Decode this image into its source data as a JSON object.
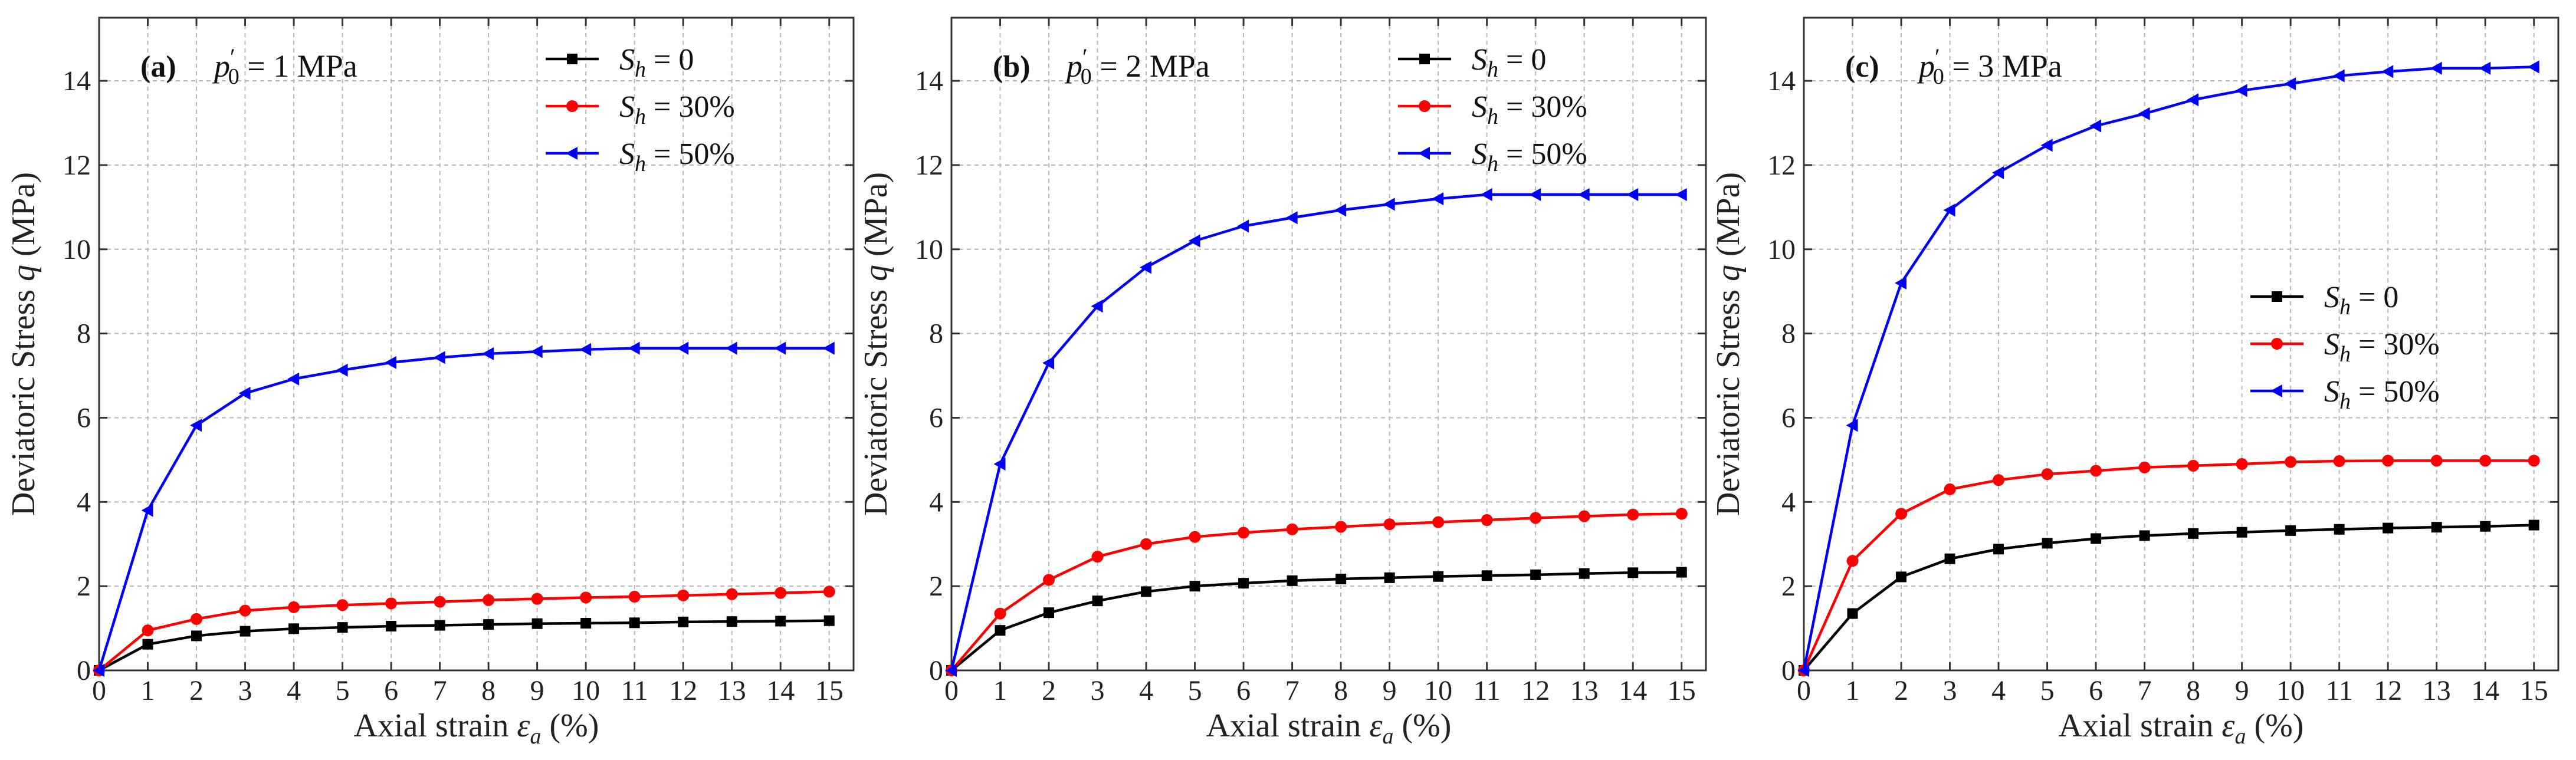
{
  "chart_data": [
    {
      "type": "line",
      "panel_label": "(a)",
      "condition": "p′0 = 1 MPa",
      "condition_parts": {
        "symbol": "p",
        "prime": "′",
        "sub": "0",
        "rest": " = 1 MPa"
      },
      "xlabel": "Axial strain εa (%)",
      "xlabel_parts": {
        "pre": "Axial strain ",
        "sym": "ε",
        "sub": "a",
        "post": " (%)"
      },
      "ylabel": "Deviatoric Stress q (MPa)",
      "ylabel_parts": {
        "pre": "Deviatoric Stress ",
        "sym": "q",
        "post": " (MPa)"
      },
      "xlim": [
        0,
        15.5
      ],
      "ylim": [
        0,
        15.5
      ],
      "xticks": [
        "0",
        "1",
        "2",
        "3",
        "4",
        "5",
        "6",
        "7",
        "8",
        "9",
        "10",
        "11",
        "12",
        "13",
        "14",
        "15"
      ],
      "yticks": [
        "0",
        "2",
        "4",
        "6",
        "8",
        "10",
        "12",
        "14"
      ],
      "grid": true,
      "legend_position": "top-right",
      "x": [
        0,
        1,
        2,
        3,
        4,
        5,
        6,
        7,
        8,
        9,
        10,
        11,
        12,
        13,
        14,
        15
      ],
      "series": [
        {
          "name": "Sh = 0",
          "label_parts": {
            "sym": "S",
            "sub": "h",
            "rest": " = 0"
          },
          "color": "#000000",
          "marker": "square",
          "values": [
            0,
            0.62,
            0.82,
            0.93,
            0.99,
            1.02,
            1.05,
            1.07,
            1.09,
            1.11,
            1.12,
            1.13,
            1.15,
            1.16,
            1.17,
            1.18
          ]
        },
        {
          "name": "Sh = 30%",
          "label_parts": {
            "sym": "S",
            "sub": "h",
            "rest": " = 30%"
          },
          "color": "#ff0000",
          "marker": "circle",
          "values": [
            0,
            0.95,
            1.22,
            1.42,
            1.5,
            1.55,
            1.59,
            1.63,
            1.67,
            1.7,
            1.73,
            1.75,
            1.78,
            1.81,
            1.84,
            1.87
          ]
        },
        {
          "name": "Sh = 50%",
          "label_parts": {
            "sym": "S",
            "sub": "h",
            "rest": " = 50%"
          },
          "color": "#0000ff",
          "marker": "triangle-left",
          "values": [
            0,
            3.8,
            5.82,
            6.58,
            6.92,
            7.13,
            7.31,
            7.43,
            7.52,
            7.57,
            7.62,
            7.65,
            7.65,
            7.65,
            7.65,
            7.65
          ]
        }
      ]
    },
    {
      "type": "line",
      "panel_label": "(b)",
      "condition": "p′0 = 2 MPa",
      "condition_parts": {
        "symbol": "p",
        "prime": "′",
        "sub": "0",
        "rest": " = 2 MPa"
      },
      "xlabel": "Axial strain εa (%)",
      "xlabel_parts": {
        "pre": "Axial strain ",
        "sym": "ε",
        "sub": "a",
        "post": " (%)"
      },
      "ylabel": "Deviatoric Stress q (MPa)",
      "ylabel_parts": {
        "pre": "Deviatoric Stress ",
        "sym": "q",
        "post": " (MPa)"
      },
      "xlim": [
        0,
        15.5
      ],
      "ylim": [
        0,
        15.5
      ],
      "xticks": [
        "0",
        "1",
        "2",
        "3",
        "4",
        "5",
        "6",
        "7",
        "8",
        "9",
        "10",
        "11",
        "12",
        "13",
        "14",
        "15"
      ],
      "yticks": [
        "0",
        "2",
        "4",
        "6",
        "8",
        "10",
        "12",
        "14"
      ],
      "grid": true,
      "legend_position": "top-right",
      "x": [
        0,
        1,
        2,
        3,
        4,
        5,
        6,
        7,
        8,
        9,
        10,
        11,
        12,
        13,
        14,
        15
      ],
      "series": [
        {
          "name": "Sh = 0",
          "label_parts": {
            "sym": "S",
            "sub": "h",
            "rest": " = 0"
          },
          "color": "#000000",
          "marker": "square",
          "values": [
            0,
            0.95,
            1.37,
            1.65,
            1.87,
            2.0,
            2.07,
            2.13,
            2.17,
            2.2,
            2.23,
            2.25,
            2.27,
            2.3,
            2.32,
            2.33
          ]
        },
        {
          "name": "Sh = 30%",
          "label_parts": {
            "sym": "S",
            "sub": "h",
            "rest": " = 30%"
          },
          "color": "#ff0000",
          "marker": "circle",
          "values": [
            0,
            1.35,
            2.15,
            2.7,
            3.0,
            3.17,
            3.27,
            3.35,
            3.41,
            3.47,
            3.52,
            3.57,
            3.62,
            3.66,
            3.7,
            3.72
          ]
        },
        {
          "name": "Sh = 50%",
          "label_parts": {
            "sym": "S",
            "sub": "h",
            "rest": " = 50%"
          },
          "color": "#0000ff",
          "marker": "triangle-left",
          "values": [
            0,
            4.9,
            7.3,
            8.65,
            9.57,
            10.2,
            10.55,
            10.75,
            10.93,
            11.07,
            11.2,
            11.3,
            11.3,
            11.3,
            11.3,
            11.3
          ]
        }
      ]
    },
    {
      "type": "line",
      "panel_label": "(c)",
      "condition": "p′0 = 3 MPa",
      "condition_parts": {
        "symbol": "p",
        "prime": "′",
        "sub": "0",
        "rest": " = 3 MPa"
      },
      "xlabel": "Axial strain εa (%)",
      "xlabel_parts": {
        "pre": "Axial strain ",
        "sym": "ε",
        "sub": "a",
        "post": " (%)"
      },
      "ylabel": "Deviatoric Stress q (MPa)",
      "ylabel_parts": {
        "pre": "Deviatoric Stress ",
        "sym": "q",
        "post": " (MPa)"
      },
      "xlim": [
        0,
        15.5
      ],
      "ylim": [
        0,
        15.5
      ],
      "xticks": [
        "0",
        "1",
        "2",
        "3",
        "4",
        "5",
        "6",
        "7",
        "8",
        "9",
        "10",
        "11",
        "12",
        "13",
        "14",
        "15"
      ],
      "yticks": [
        "0",
        "2",
        "4",
        "6",
        "8",
        "10",
        "12",
        "14"
      ],
      "grid": true,
      "legend_position": "center-right",
      "x": [
        0,
        1,
        2,
        3,
        4,
        5,
        6,
        7,
        8,
        9,
        10,
        11,
        12,
        13,
        14,
        15
      ],
      "series": [
        {
          "name": "Sh = 0",
          "label_parts": {
            "sym": "S",
            "sub": "h",
            "rest": " = 0"
          },
          "color": "#000000",
          "marker": "square",
          "values": [
            0,
            1.35,
            2.22,
            2.65,
            2.88,
            3.02,
            3.13,
            3.2,
            3.25,
            3.28,
            3.32,
            3.35,
            3.38,
            3.4,
            3.42,
            3.45
          ]
        },
        {
          "name": "Sh = 30%",
          "label_parts": {
            "sym": "S",
            "sub": "h",
            "rest": " = 30%"
          },
          "color": "#ff0000",
          "marker": "circle",
          "values": [
            0,
            2.6,
            3.72,
            4.3,
            4.52,
            4.66,
            4.74,
            4.82,
            4.86,
            4.9,
            4.95,
            4.97,
            4.98,
            4.98,
            4.98,
            4.98
          ]
        },
        {
          "name": "Sh = 50%",
          "label_parts": {
            "sym": "S",
            "sub": "h",
            "rest": " = 50%"
          },
          "color": "#0000ff",
          "marker": "triangle-left",
          "values": [
            0,
            5.82,
            9.2,
            10.93,
            11.82,
            12.47,
            12.93,
            13.22,
            13.55,
            13.77,
            13.93,
            14.12,
            14.22,
            14.3,
            14.3,
            14.33
          ]
        }
      ]
    }
  ]
}
